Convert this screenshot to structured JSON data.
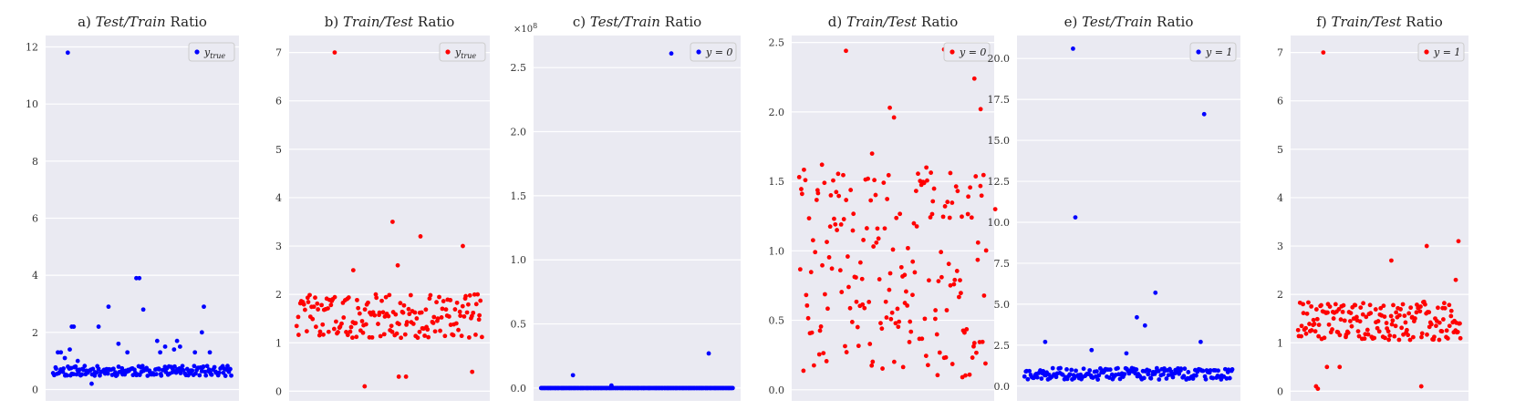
{
  "chart_data": [
    {
      "type": "scatter",
      "title": "a) Test/Train Ratio",
      "color": "#0000ff",
      "ylim": [
        -0.4,
        12.4
      ],
      "yticks": [
        0,
        2,
        4,
        6,
        8,
        10,
        12
      ],
      "ytick_labels": [
        "0",
        "2",
        "4",
        "6",
        "8",
        "10",
        "12"
      ],
      "legend": "y_true",
      "legend_position": "top-right",
      "grid": true,
      "outliers": [
        [
          15,
          11.8
        ],
        [
          19,
          2.2
        ],
        [
          21,
          2.2
        ],
        [
          17,
          1.4
        ],
        [
          46,
          2.2
        ],
        [
          56,
          2.9
        ],
        [
          66,
          1.6
        ],
        [
          84,
          3.9
        ],
        [
          87,
          3.9
        ],
        [
          91,
          2.8
        ],
        [
          105,
          1.7
        ],
        [
          108,
          1.3
        ],
        [
          113,
          1.5
        ],
        [
          122,
          1.4
        ],
        [
          125,
          1.7
        ],
        [
          128,
          1.5
        ],
        [
          143,
          1.3
        ],
        [
          150,
          2.0
        ],
        [
          152,
          2.9
        ],
        [
          158,
          1.3
        ],
        [
          5,
          1.3
        ],
        [
          8,
          1.3
        ],
        [
          12,
          1.1
        ],
        [
          25,
          1.0
        ],
        [
          75,
          1.3
        ],
        [
          39,
          0.2
        ]
      ],
      "series_spec": {
        "n": 170,
        "base": 0.65,
        "spread": 0.35,
        "seed": 11
      }
    },
    {
      "type": "scatter",
      "title": "b) Train/Test Ratio",
      "color": "#ff0000",
      "ylim": [
        -0.2,
        7.35
      ],
      "yticks": [
        0,
        1,
        2,
        3,
        4,
        5,
        6,
        7
      ],
      "ytick_labels": [
        "0",
        "1",
        "2",
        "3",
        "4",
        "5",
        "6",
        "7"
      ],
      "legend": "y_true",
      "legend_position": "top-right",
      "grid": true,
      "outliers": [
        [
          37,
          7.0
        ],
        [
          93,
          3.5
        ],
        [
          120,
          3.2
        ],
        [
          161,
          3.0
        ],
        [
          66,
          0.1
        ],
        [
          99,
          0.3
        ],
        [
          106,
          0.3
        ],
        [
          170,
          0.4
        ],
        [
          55,
          2.5
        ],
        [
          98,
          2.6
        ]
      ],
      "series_spec": {
        "n": 175,
        "base": 1.55,
        "spread": 0.9,
        "seed": 22
      }
    },
    {
      "type": "scatter",
      "title": "c) Test/Train Ratio",
      "color": "#0000ff",
      "ylim": [
        -0.1,
        2.75
      ],
      "yticks": [
        0,
        0.5,
        1.0,
        1.5,
        2.0,
        2.5
      ],
      "ytick_labels": [
        "0.0",
        "0.5",
        "1.0",
        "1.5",
        "2.0",
        "2.5"
      ],
      "y_multiplier": "×10",
      "y_multiplier_exp": "8",
      "legend": "y = 0",
      "legend_position": "top-right",
      "grid": true,
      "outliers": [
        [
          122,
          2.61
        ],
        [
          30,
          0.1
        ],
        [
          66,
          0.02
        ],
        [
          157,
          0.27
        ]
      ],
      "series_spec": {
        "n": 180,
        "base": 0.0,
        "spread": 0.0,
        "seed": 33
      }
    },
    {
      "type": "scatter",
      "title": "d) Train/Test Ratio",
      "color": "#ff0000",
      "ylim": [
        -0.08,
        2.55
      ],
      "yticks": [
        0,
        0.5,
        1.0,
        1.5,
        2.0,
        2.5
      ],
      "ytick_labels": [
        "0.0",
        "0.5",
        "1.0",
        "1.5",
        "2.0",
        "2.5"
      ],
      "legend": "y = 0",
      "legend_position": "top-right",
      "grid": true,
      "outliers": [
        [
          45,
          2.44
        ],
        [
          139,
          2.45
        ],
        [
          168,
          2.24
        ],
        [
          87,
          2.03
        ],
        [
          174,
          2.02
        ],
        [
          91,
          1.96
        ],
        [
          70,
          1.7
        ],
        [
          22,
          1.62
        ],
        [
          122,
          1.6
        ],
        [
          145,
          1.56
        ],
        [
          188,
          1.3
        ]
      ],
      "series_spec": {
        "n": 190,
        "base": 0.6,
        "spread": 1.2,
        "seed": 44
      }
    },
    {
      "type": "scatter",
      "title": "e) Test/Train Ratio",
      "color": "#0000ff",
      "ylim": [
        -0.9,
        21.4
      ],
      "yticks": [
        0,
        2.5,
        5.0,
        7.5,
        10.0,
        12.5,
        15.0,
        17.5,
        20.0
      ],
      "ytick_labels": [
        "0.0",
        "2.5",
        "5.0",
        "7.5",
        "10.0",
        "12.5",
        "15.0",
        "17.5",
        "20.0"
      ],
      "legend": "y = 1",
      "legend_position": "top-right",
      "grid": true,
      "outliers": [
        [
          42,
          20.6
        ],
        [
          44,
          10.3
        ],
        [
          155,
          16.6
        ],
        [
          113,
          5.7
        ],
        [
          97,
          4.2
        ],
        [
          104,
          3.7
        ],
        [
          152,
          2.7
        ],
        [
          18,
          2.7
        ],
        [
          88,
          2.0
        ],
        [
          58,
          2.2
        ]
      ],
      "series_spec": {
        "n": 180,
        "base": 0.75,
        "spread": 0.7,
        "seed": 55
      }
    },
    {
      "type": "scatter",
      "title": "f) Train/Test Ratio",
      "color": "#ff0000",
      "ylim": [
        -0.2,
        7.35
      ],
      "yticks": [
        0,
        1,
        2,
        3,
        4,
        5,
        6,
        7
      ],
      "ytick_labels": [
        "0",
        "1",
        "2",
        "3",
        "4",
        "5",
        "6",
        "7"
      ],
      "legend": "y = 1",
      "legend_position": "top-right",
      "grid": true,
      "outliers": [
        [
          28,
          7.0
        ],
        [
          142,
          3.0
        ],
        [
          177,
          3.1
        ],
        [
          174,
          2.3
        ],
        [
          103,
          2.7
        ],
        [
          20,
          0.1
        ],
        [
          22,
          0.05
        ],
        [
          136,
          0.1
        ],
        [
          32,
          0.5
        ],
        [
          46,
          0.5
        ]
      ],
      "series_spec": {
        "n": 180,
        "base": 1.45,
        "spread": 0.8,
        "seed": 66
      }
    }
  ]
}
